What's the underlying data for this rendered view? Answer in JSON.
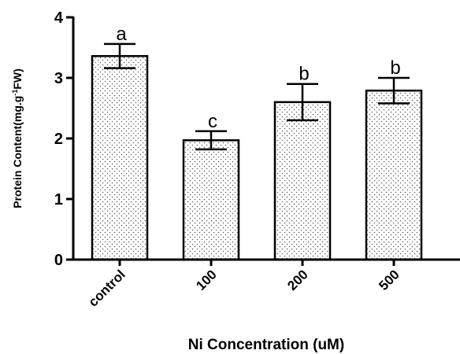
{
  "chart_data": {
    "type": "bar",
    "categories": [
      "control",
      "100",
      "200",
      "500"
    ],
    "values": [
      3.36,
      1.97,
      2.6,
      2.79
    ],
    "errors": [
      0.2,
      0.15,
      0.3,
      0.21
    ],
    "significance": [
      "a",
      "c",
      "b",
      "b"
    ],
    "title": "",
    "xlabel": "Ni Concentration (uM)",
    "ylabel_main": "Protein Content(mg.g",
    "ylabel_sup": "-1",
    "ylabel_end": "FW)",
    "ylim": [
      0,
      4
    ],
    "yticks": [
      "0",
      "1",
      "2",
      "3",
      "4"
    ],
    "bar_fill": "dotted",
    "grid": false,
    "legend": "none"
  }
}
